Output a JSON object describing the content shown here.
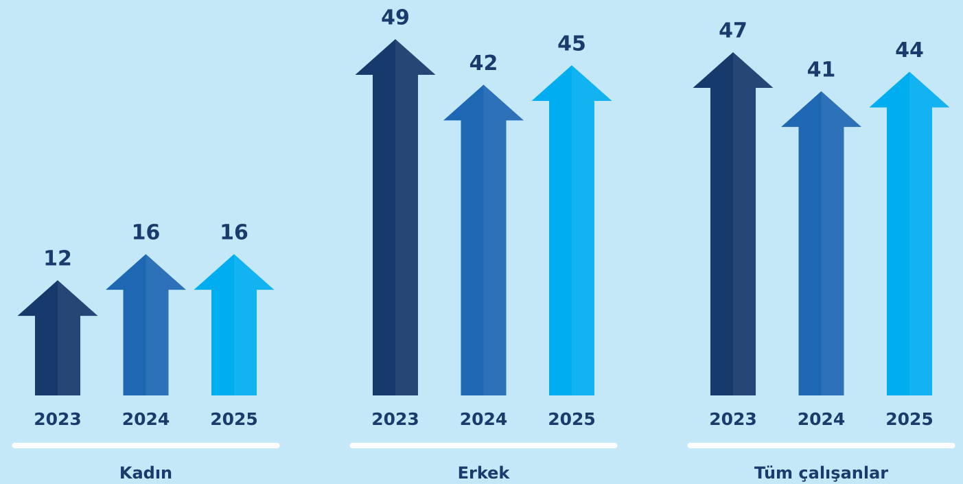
{
  "chart_data": {
    "type": "bar",
    "categories": [
      "Kadın",
      "Erkek",
      "Tüm çalışanlar"
    ],
    "series": [
      {
        "name": "2023",
        "color": "#163a6b",
        "values": [
          12,
          49,
          47
        ]
      },
      {
        "name": "2024",
        "color": "#1e67b3",
        "values": [
          16,
          42,
          41
        ]
      },
      {
        "name": "2025",
        "color": "#00aeef",
        "values": [
          16,
          45,
          44
        ]
      }
    ]
  }
}
